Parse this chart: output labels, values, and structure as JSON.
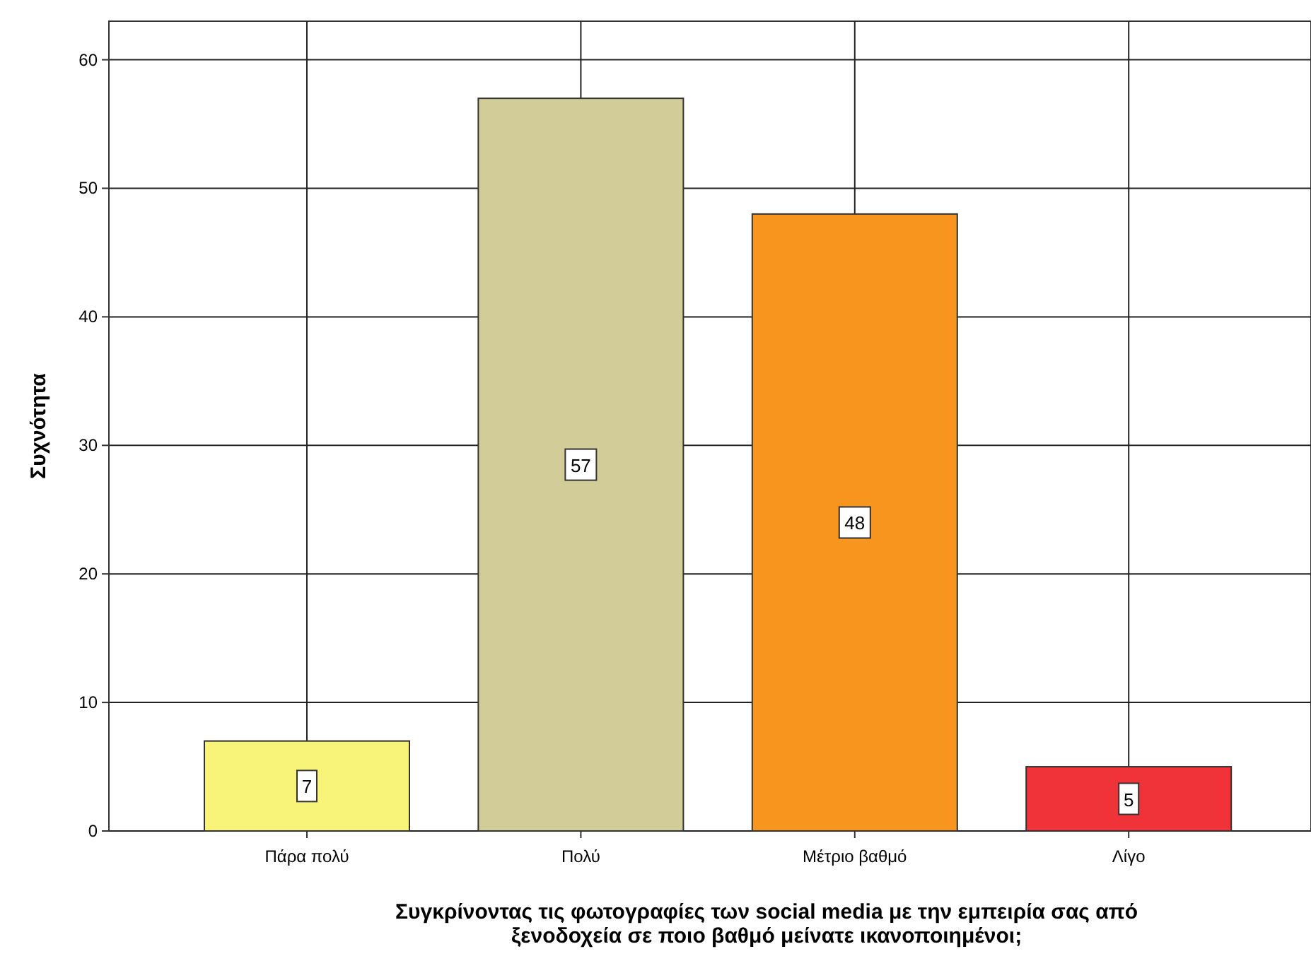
{
  "chart_data": {
    "type": "bar",
    "xlabel": "Συγκρίνοντας τις φωτογραφίες των social media με την εμπειρία σας από ξενοδοχεία σε ποιο βαθμό μείνατε ικανοποιημένοι;",
    "ylabel": "Συχνότητα",
    "categories": [
      "Πάρα πολύ",
      "Πολύ",
      "Μέτριο βαθμό",
      "Λίγο"
    ],
    "values": [
      7,
      57,
      48,
      5
    ],
    "colors": [
      "#f8f47a",
      "#d2cd98",
      "#f7951e",
      "#ef3338"
    ],
    "ylim": [
      0,
      63
    ],
    "yticks": [
      0,
      10,
      20,
      30,
      40,
      50,
      60
    ],
    "grid": true,
    "data_labels": true
  }
}
